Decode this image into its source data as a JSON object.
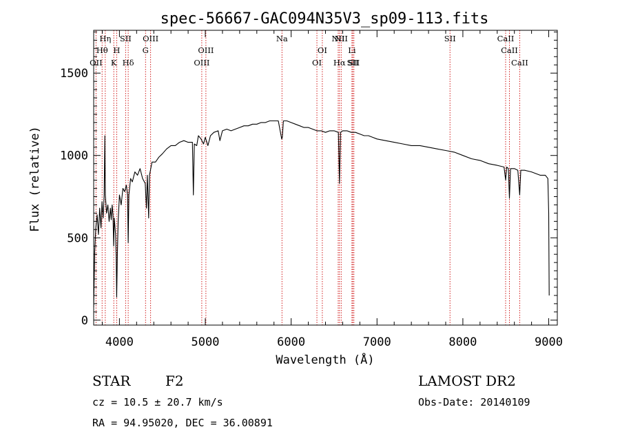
{
  "chart_data": {
    "type": "line",
    "title": "spec-56667-GAC094N35V3_sp09-113.fits",
    "xlabel": "Wavelength (Å)",
    "ylabel": "Flux (relative)",
    "xlim": [
      3700,
      9100
    ],
    "ylim": [
      -30,
      1760
    ],
    "x_ticks": [
      4000,
      5000,
      6000,
      7000,
      8000,
      9000
    ],
    "y_ticks": [
      0,
      500,
      1000,
      1500
    ],
    "grid": false,
    "series": [
      {
        "values": [
          [
            3700,
            80
          ],
          [
            3712,
            420
          ],
          [
            3725,
            560
          ],
          [
            3740,
            640
          ],
          [
            3755,
            520
          ],
          [
            3770,
            680
          ],
          [
            3785,
            560
          ],
          [
            3797,
            720
          ],
          [
            3810,
            620
          ],
          [
            3822,
            760
          ],
          [
            3830,
            1120
          ],
          [
            3836,
            760
          ],
          [
            3850,
            650
          ],
          [
            3865,
            700
          ],
          [
            3880,
            600
          ],
          [
            3895,
            680
          ],
          [
            3905,
            610
          ],
          [
            3915,
            700
          ],
          [
            3925,
            640
          ],
          [
            3933,
            450
          ],
          [
            3940,
            620
          ],
          [
            3955,
            520
          ],
          [
            3962,
            380
          ],
          [
            3968,
            140
          ],
          [
            3975,
            380
          ],
          [
            3985,
            600
          ],
          [
            4000,
            760
          ],
          [
            4020,
            700
          ],
          [
            4040,
            800
          ],
          [
            4060,
            780
          ],
          [
            4080,
            820
          ],
          [
            4095,
            760
          ],
          [
            4102,
            470
          ],
          [
            4110,
            760
          ],
          [
            4130,
            860
          ],
          [
            4150,
            840
          ],
          [
            4180,
            900
          ],
          [
            4210,
            880
          ],
          [
            4240,
            920
          ],
          [
            4270,
            860
          ],
          [
            4300,
            830
          ],
          [
            4315,
            680
          ],
          [
            4325,
            880
          ],
          [
            4340,
            620
          ],
          [
            4350,
            880
          ],
          [
            4380,
            960
          ],
          [
            4420,
            960
          ],
          [
            4460,
            990
          ],
          [
            4500,
            1010
          ],
          [
            4550,
            1040
          ],
          [
            4600,
            1060
          ],
          [
            4650,
            1060
          ],
          [
            4700,
            1080
          ],
          [
            4750,
            1090
          ],
          [
            4800,
            1080
          ],
          [
            4850,
            1080
          ],
          [
            4861,
            760
          ],
          [
            4872,
            1070
          ],
          [
            4900,
            1060
          ],
          [
            4920,
            1120
          ],
          [
            4950,
            1100
          ],
          [
            4980,
            1070
          ],
          [
            5000,
            1110
          ],
          [
            5030,
            1060
          ],
          [
            5060,
            1120
          ],
          [
            5100,
            1140
          ],
          [
            5150,
            1150
          ],
          [
            5170,
            1090
          ],
          [
            5200,
            1150
          ],
          [
            5250,
            1160
          ],
          [
            5300,
            1150
          ],
          [
            5350,
            1160
          ],
          [
            5400,
            1170
          ],
          [
            5450,
            1180
          ],
          [
            5500,
            1180
          ],
          [
            5550,
            1190
          ],
          [
            5600,
            1190
          ],
          [
            5650,
            1200
          ],
          [
            5700,
            1200
          ],
          [
            5750,
            1210
          ],
          [
            5800,
            1210
          ],
          [
            5850,
            1210
          ],
          [
            5890,
            1100
          ],
          [
            5897,
            1110
          ],
          [
            5910,
            1210
          ],
          [
            5950,
            1210
          ],
          [
            6000,
            1200
          ],
          [
            6050,
            1190
          ],
          [
            6100,
            1180
          ],
          [
            6150,
            1170
          ],
          [
            6200,
            1170
          ],
          [
            6250,
            1160
          ],
          [
            6300,
            1150
          ],
          [
            6350,
            1150
          ],
          [
            6400,
            1140
          ],
          [
            6450,
            1150
          ],
          [
            6500,
            1150
          ],
          [
            6550,
            1140
          ],
          [
            6563,
            830
          ],
          [
            6575,
            1140
          ],
          [
            6600,
            1150
          ],
          [
            6650,
            1150
          ],
          [
            6700,
            1140
          ],
          [
            6750,
            1140
          ],
          [
            6800,
            1130
          ],
          [
            6850,
            1120
          ],
          [
            6900,
            1120
          ],
          [
            6950,
            1110
          ],
          [
            7000,
            1100
          ],
          [
            7100,
            1090
          ],
          [
            7200,
            1080
          ],
          [
            7300,
            1070
          ],
          [
            7400,
            1060
          ],
          [
            7500,
            1060
          ],
          [
            7600,
            1050
          ],
          [
            7700,
            1040
          ],
          [
            7800,
            1030
          ],
          [
            7900,
            1020
          ],
          [
            8000,
            1000
          ],
          [
            8100,
            980
          ],
          [
            8200,
            970
          ],
          [
            8300,
            950
          ],
          [
            8400,
            940
          ],
          [
            8480,
            930
          ],
          [
            8498,
            850
          ],
          [
            8510,
            930
          ],
          [
            8530,
            920
          ],
          [
            8542,
            740
          ],
          [
            8555,
            920
          ],
          [
            8600,
            920
          ],
          [
            8640,
            910
          ],
          [
            8662,
            760
          ],
          [
            8675,
            910
          ],
          [
            8720,
            910
          ],
          [
            8800,
            900
          ],
          [
            8850,
            890
          ],
          [
            8900,
            880
          ],
          [
            8960,
            880
          ],
          [
            8990,
            860
          ],
          [
            9000,
            650
          ],
          [
            9005,
            150
          ]
        ]
      }
    ],
    "line_markers": [
      {
        "label": "OII",
        "wavelength": 3727,
        "row": 3
      },
      {
        "label": "Hθ",
        "wavelength": 3798,
        "row": 2
      },
      {
        "label": "Hη",
        "wavelength": 3835,
        "row": 1
      },
      {
        "label": "K",
        "wavelength": 3934,
        "row": 3
      },
      {
        "label": "H",
        "wavelength": 3968,
        "row": 2
      },
      {
        "label": "SII",
        "wavelength": 4072,
        "row": 1
      },
      {
        "label": "Hδ",
        "wavelength": 4102,
        "row": 3
      },
      {
        "label": "G",
        "wavelength": 4304,
        "row": 2
      },
      {
        "label": "OIII",
        "wavelength": 4363,
        "row": 1
      },
      {
        "label": "OIII",
        "wavelength": 4959,
        "row": 3
      },
      {
        "label": "OIII",
        "wavelength": 5007,
        "row": 2
      },
      {
        "label": "Na",
        "wavelength": 5893,
        "row": 1
      },
      {
        "label": "OI",
        "wavelength": 6300,
        "row": 3
      },
      {
        "label": "OI",
        "wavelength": 6363,
        "row": 2
      },
      {
        "label": "NII",
        "wavelength": 6548,
        "row": 1
      },
      {
        "label": "Hα",
        "wavelength": 6563,
        "row": 3
      },
      {
        "label": "NII",
        "wavelength": 6583,
        "row": 1
      },
      {
        "label": "Li",
        "wavelength": 6708,
        "row": 2
      },
      {
        "label": "SII",
        "wavelength": 6717,
        "row": 3
      },
      {
        "label": "SII",
        "wavelength": 6731,
        "row": 3
      },
      {
        "label": "SII",
        "wavelength": 7850,
        "row": 1
      },
      {
        "label": "CaII",
        "wavelength": 8498,
        "row": 1
      },
      {
        "label": "CaII",
        "wavelength": 8542,
        "row": 2
      },
      {
        "label": "CaII",
        "wavelength": 8662,
        "row": 3
      }
    ],
    "line_marker_color": "#cc0000",
    "spectrum_color": "#000000"
  },
  "info": {
    "object_class": "STAR",
    "subclass": "F2",
    "survey": "LAMOST DR2",
    "redshift": "cz = 10.5 ± 20.7 km/s",
    "obs_date": "Obs-Date: 20140109",
    "coords": "RA =  94.95020, DEC =  36.00891"
  }
}
